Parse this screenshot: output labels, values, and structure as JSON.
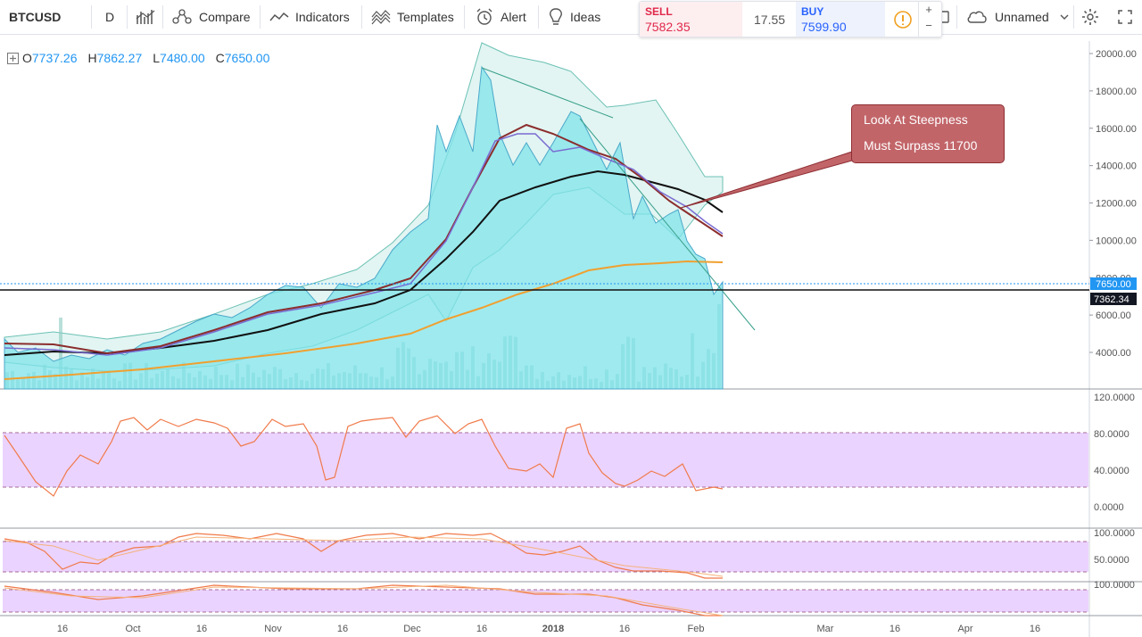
{
  "toolbar": {
    "symbol": "BTCUSD",
    "interval": "D",
    "compare_label": "Compare",
    "indicators_label": "Indicators",
    "templates_label": "Templates",
    "alert_label": "Alert",
    "ideas_label": "Ideas",
    "layout_name": "Unnamed"
  },
  "trade_panel": {
    "sell_label": "SELL",
    "sell_price": "7582.35",
    "spread": "17.55",
    "buy_label": "BUY",
    "buy_price": "7599.90",
    "plus": "+",
    "minus": "−"
  },
  "ohlc": {
    "open_label": "O",
    "open": "7737.26",
    "high_label": "H",
    "high": "7862.27",
    "low_label": "L",
    "low": "7480.00",
    "close_label": "C",
    "close": "7650.00"
  },
  "annotation": {
    "line1": "Look At Steepness",
    "line2": "Must Surpass 11700"
  },
  "price_axis": {
    "ticks": [
      "20000.00",
      "18000.00",
      "16000.00",
      "14000.00",
      "12000.00",
      "10000.00",
      "8000.00",
      "6000.00",
      "4000.00"
    ],
    "last_price": "7650.00",
    "level_price": "7362.34"
  },
  "rsi_axis": {
    "ticks": [
      "120.0000",
      "80.0000",
      "40.0000",
      "0.0000"
    ]
  },
  "stoch_axis": {
    "ticks": [
      "100.0000",
      "50.0000"
    ]
  },
  "osc3_axis": {
    "ticks": [
      "100.0000"
    ]
  },
  "time_axis": {
    "labels": [
      "16",
      "Oct",
      "16",
      "Nov",
      "16",
      "Dec",
      "16",
      "2018",
      "16",
      "Feb",
      "Mar",
      "16",
      "Apr",
      "16"
    ]
  },
  "colors": {
    "area": "#7fe3ea",
    "area_line": "#4aa8c9",
    "band": "#8fd1c8",
    "ma_black": "#111111",
    "ma_red": "#8b2d2d",
    "ma_purple": "#7a6bd1",
    "ma_orange": "#f0a030",
    "rsi_line": "#f07a4a",
    "band_fill": "#e6c8ff",
    "last_price_bg": "#2196f3",
    "level_bg": "#131722"
  },
  "chart_data": {
    "type": "line",
    "title": "",
    "x": [
      "2017-09-05",
      "2017-09-20",
      "2017-10-01",
      "2017-10-16",
      "2017-11-01",
      "2017-11-16",
      "2017-12-01",
      "2017-12-08",
      "2017-12-17",
      "2017-12-22",
      "2018-01-01",
      "2018-01-07",
      "2018-01-16",
      "2018-01-28",
      "2018-02-06"
    ],
    "series": [
      {
        "values": [
          4600,
          3900,
          4300,
          5700,
          6600,
          7800,
          10000,
          16000,
          19300,
          14000,
          13400,
          16800,
          11500,
          11200,
          7650
        ]
      }
    ],
    "ylim": [
      2000,
      21000
    ],
    "horizontal_level": 7362.34,
    "last_price": 7650.0
  }
}
